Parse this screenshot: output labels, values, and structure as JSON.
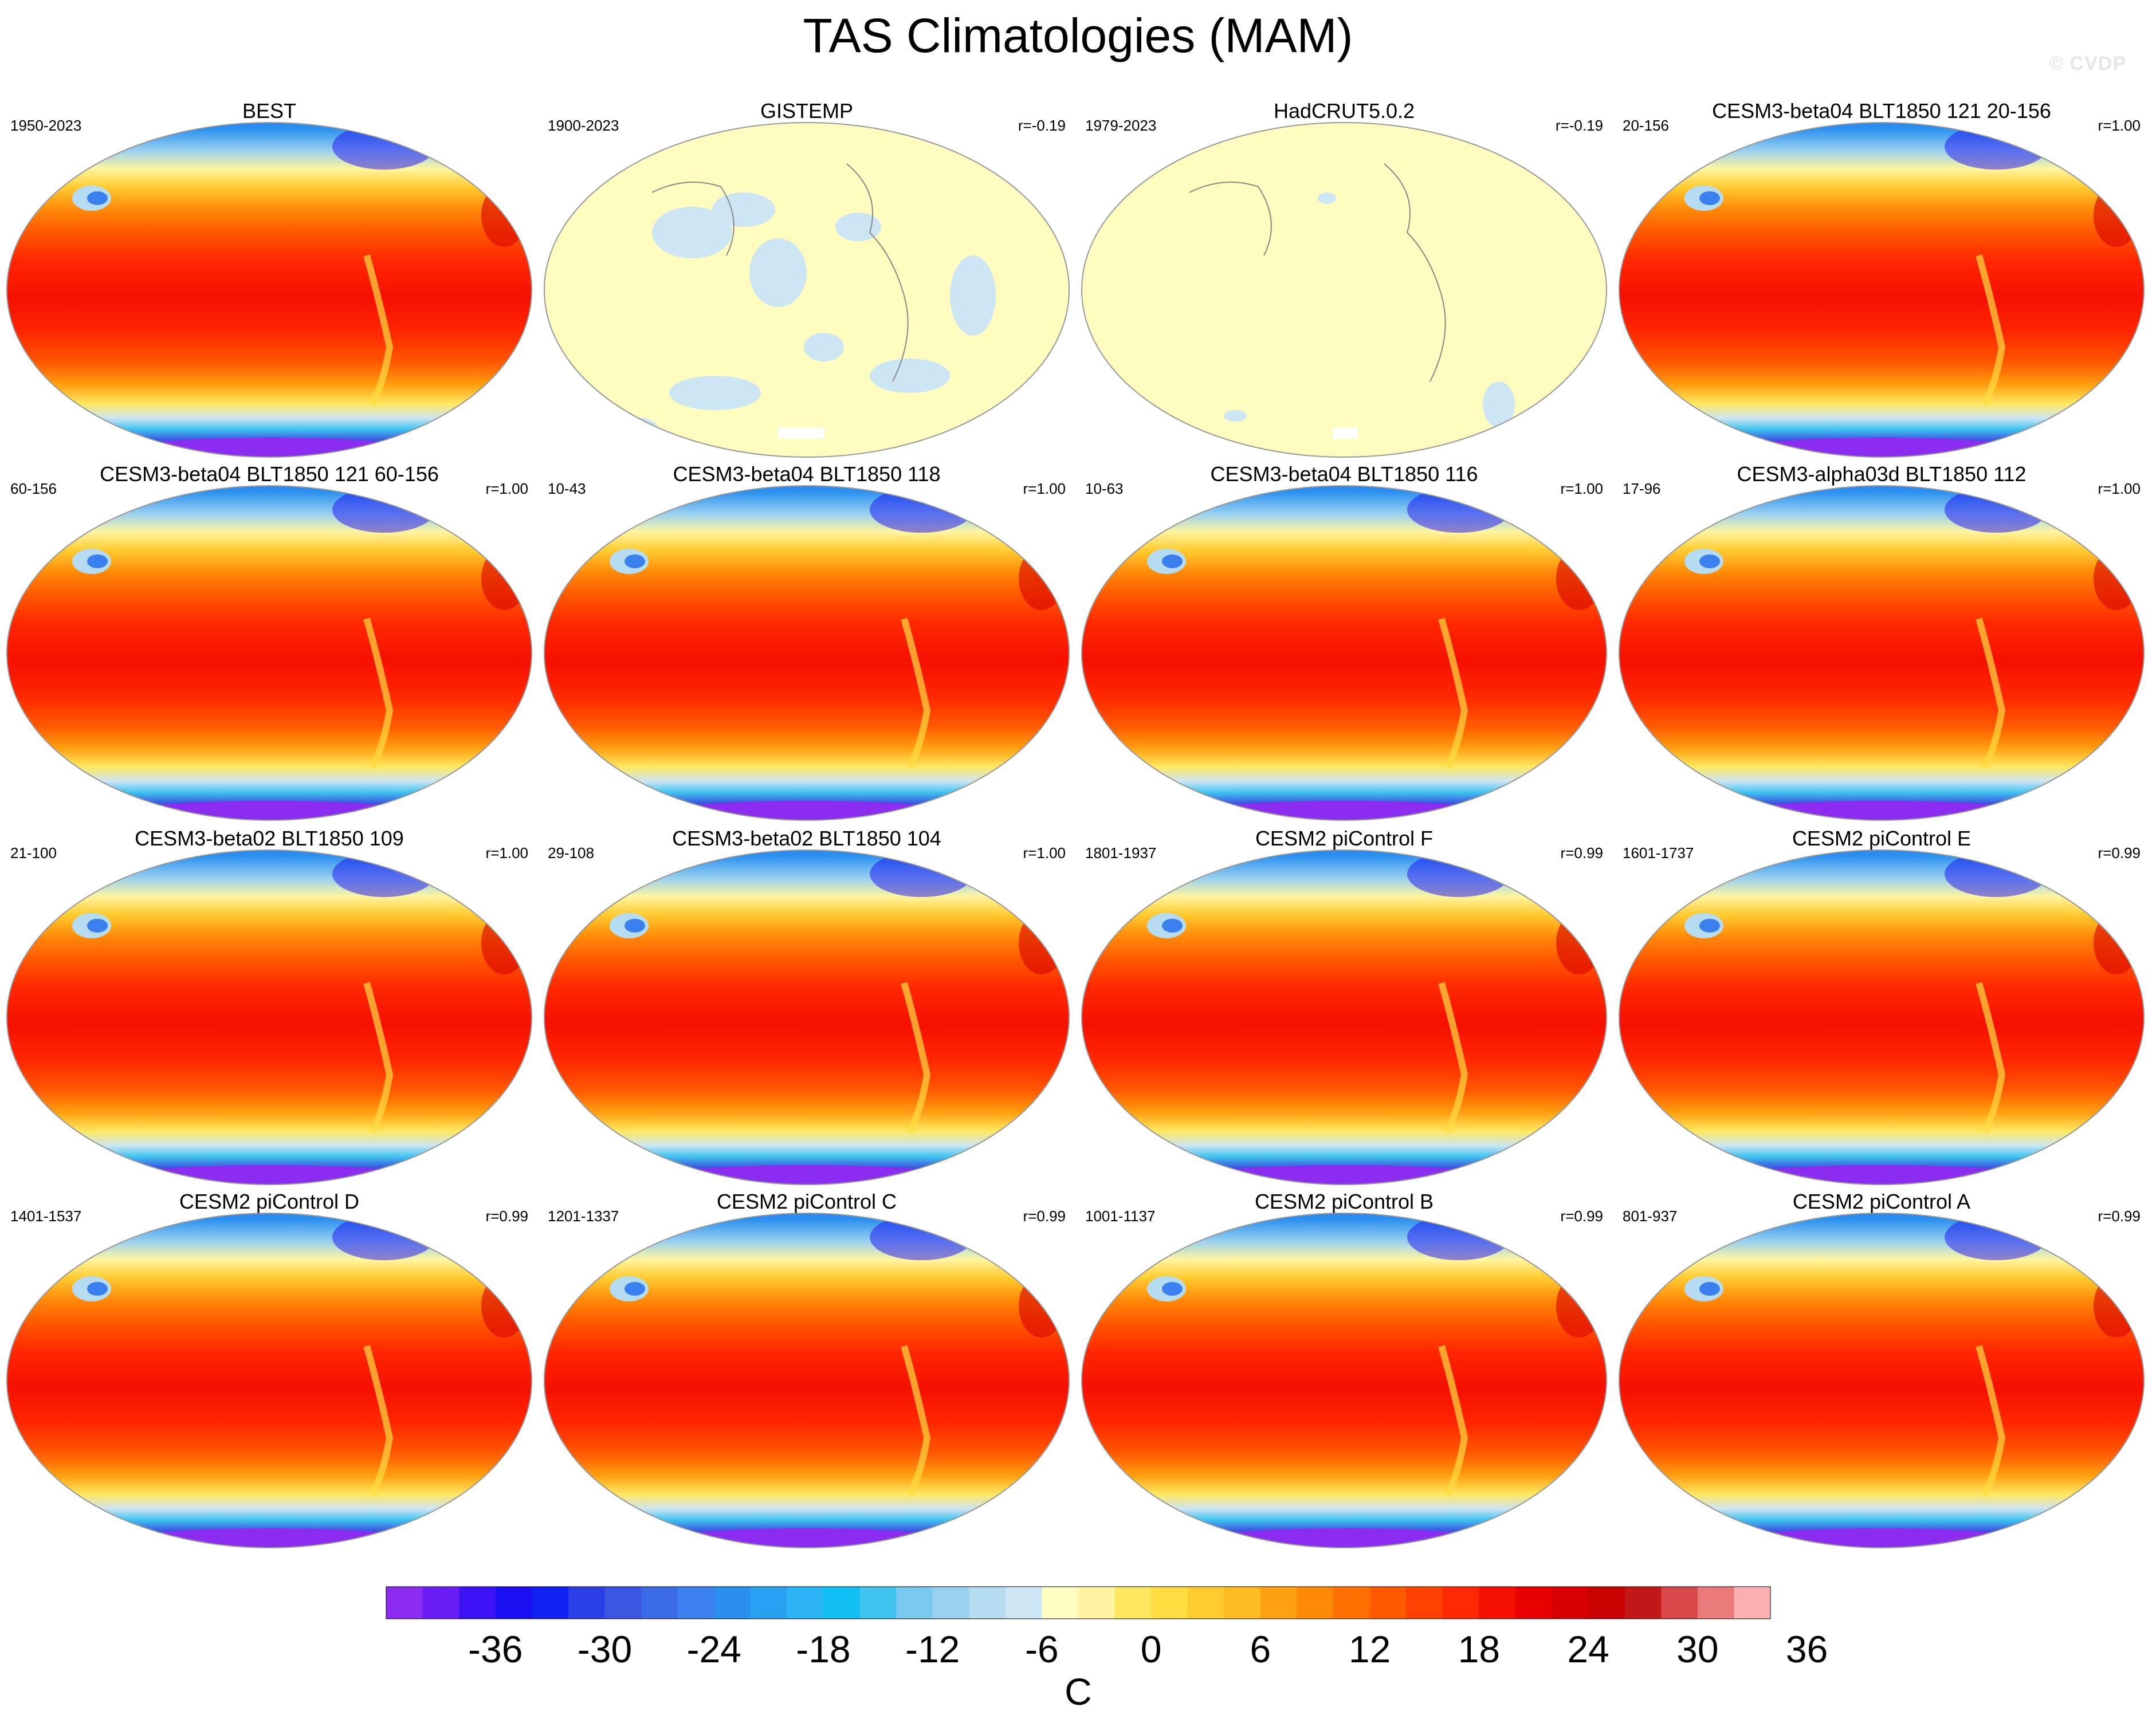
{
  "title": "TAS Climatologies (MAM)",
  "watermark": "© CVDP",
  "panels": [
    {
      "title": "BEST",
      "left_label": "1950-2023",
      "right_label": "",
      "style": "full"
    },
    {
      "title": "GISTEMP",
      "left_label": "1900-2023",
      "right_label": "r=-0.19",
      "style": "pale"
    },
    {
      "title": "HadCRUT5.0.2",
      "left_label": "1979-2023",
      "right_label": "r=-0.19",
      "style": "pale2"
    },
    {
      "title": "CESM3-beta04 BLT1850 121 20-156",
      "left_label": "20-156",
      "right_label": "r=1.00",
      "style": "full"
    },
    {
      "title": "CESM3-beta04 BLT1850 121 60-156",
      "left_label": "60-156",
      "right_label": "r=1.00",
      "style": "full"
    },
    {
      "title": "CESM3-beta04 BLT1850 118",
      "left_label": "10-43",
      "right_label": "r=1.00",
      "style": "full"
    },
    {
      "title": "CESM3-beta04 BLT1850 116",
      "left_label": "10-63",
      "right_label": "r=1.00",
      "style": "full"
    },
    {
      "title": "CESM3-alpha03d BLT1850 112",
      "left_label": "17-96",
      "right_label": "r=1.00",
      "style": "full"
    },
    {
      "title": "CESM3-beta02 BLT1850 109",
      "left_label": "21-100",
      "right_label": "r=1.00",
      "style": "full"
    },
    {
      "title": "CESM3-beta02 BLT1850 104",
      "left_label": "29-108",
      "right_label": "r=1.00",
      "style": "full"
    },
    {
      "title": "CESM2 piControl F",
      "left_label": "1801-1937",
      "right_label": "r=0.99",
      "style": "full"
    },
    {
      "title": "CESM2 piControl E",
      "left_label": "1601-1737",
      "right_label": "r=0.99",
      "style": "full"
    },
    {
      "title": "CESM2 piControl D",
      "left_label": "1401-1537",
      "right_label": "r=0.99",
      "style": "full"
    },
    {
      "title": "CESM2 piControl C",
      "left_label": "1201-1337",
      "right_label": "r=0.99",
      "style": "full"
    },
    {
      "title": "CESM2 piControl B",
      "left_label": "1001-1137",
      "right_label": "r=0.99",
      "style": "full"
    },
    {
      "title": "CESM2 piControl A",
      "left_label": "801-937",
      "right_label": "r=0.99",
      "style": "full"
    }
  ],
  "colorbar": {
    "unit_label": "C",
    "tick_labels": [
      "-36",
      "-30",
      "-24",
      "-18",
      "-12",
      "-6",
      "0",
      "6",
      "12",
      "18",
      "24",
      "30",
      "36"
    ],
    "colors": [
      "#8b2cf0",
      "#6a1cf5",
      "#3d12f5",
      "#1a0ff0",
      "#1020f0",
      "#2a40e6",
      "#3a55e0",
      "#3a6ae6",
      "#3a80ee",
      "#2a90f0",
      "#28a0f2",
      "#2ab4f5",
      "#10c0f5",
      "#40c4f0",
      "#78c8f0",
      "#98d0f0",
      "#b6dcf2",
      "#cde6f4",
      "#fffcc0",
      "#fff5a0",
      "#ffe860",
      "#ffdc40",
      "#ffcc30",
      "#ffbc20",
      "#ffa010",
      "#ff8a08",
      "#ff7000",
      "#ff5a00",
      "#ff4000",
      "#ff2800",
      "#f51000",
      "#e80000",
      "#d80000",
      "#c80000",
      "#c41818",
      "#d84848",
      "#ea7a7a",
      "#fbb0b0"
    ]
  }
}
